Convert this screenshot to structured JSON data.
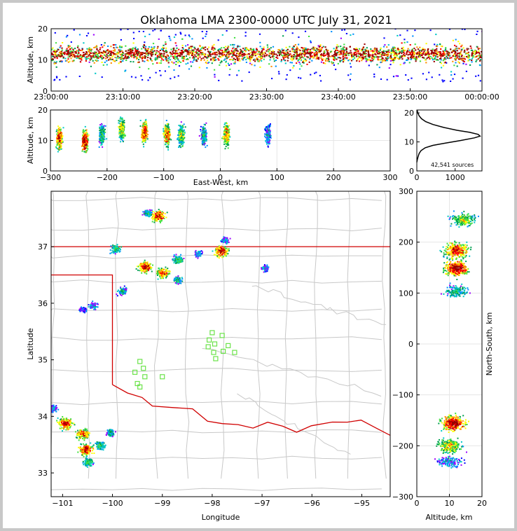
{
  "chart_data": [
    {
      "type": "heatmap",
      "panel": "altitude-time",
      "title": "Oklahoma LMA 2300-0000 UTC July 31, 2021",
      "ylabel": "Altitude, km",
      "ylim": [
        0,
        20
      ],
      "yticks": [
        "0",
        "10",
        "20"
      ],
      "xlim": [
        0,
        60
      ],
      "xticks": [
        "23:00:00",
        "23:10:00",
        "23:20:00",
        "23:30:00",
        "23:40:00",
        "23:50:00",
        "00:00:00"
      ],
      "density_band_km": [
        7,
        16
      ]
    },
    {
      "type": "heatmap",
      "panel": "altitude-east-west",
      "xlabel": "East-West, km",
      "ylabel": "Altitude, km",
      "xlim": [
        -300,
        300
      ],
      "ylim": [
        0,
        20
      ],
      "xticks": [
        "−300",
        "−200",
        "−100",
        "0",
        "100",
        "200",
        "300"
      ],
      "yticks": [
        "0",
        "10",
        "20"
      ],
      "cells": [
        {
          "x": -285,
          "alt": 11,
          "i": 0.9
        },
        {
          "x": -240,
          "alt": 10,
          "i": 1.0
        },
        {
          "x": -210,
          "alt": 12,
          "i": 0.5
        },
        {
          "x": -175,
          "alt": 14,
          "i": 0.7
        },
        {
          "x": -135,
          "alt": 13,
          "i": 0.9
        },
        {
          "x": -95,
          "alt": 12,
          "i": 0.85
        },
        {
          "x": -70,
          "alt": 12,
          "i": 0.6
        },
        {
          "x": -30,
          "alt": 12,
          "i": 0.4
        },
        {
          "x": 10,
          "alt": 12,
          "i": 0.8
        },
        {
          "x": 83,
          "alt": 12,
          "i": 0.3
        }
      ]
    },
    {
      "type": "line",
      "panel": "altitude-histogram",
      "xticks": [
        "0",
        "1000"
      ],
      "yticks": [
        "0",
        "10",
        "20"
      ],
      "xlim": [
        0,
        1700
      ],
      "ylim": [
        0,
        21
      ],
      "annotation": "42,541 sources",
      "x": [
        0,
        15,
        35,
        60,
        110,
        220,
        420,
        750,
        1150,
        1500,
        1650,
        1600,
        1380,
        1050,
        700,
        420,
        230,
        120,
        60,
        25,
        5
      ],
      "y": [
        3,
        4,
        5,
        6,
        7,
        8,
        8.8,
        9.6,
        10.5,
        11.4,
        12,
        12.6,
        13.3,
        14,
        15,
        16,
        17,
        18,
        19,
        20,
        21
      ]
    },
    {
      "type": "scatter",
      "panel": "plan-view-map",
      "xlabel": "Longitude",
      "ylabel": "Latitude",
      "xlim": [
        -101.23,
        -94.43
      ],
      "ylim": [
        32.58,
        37.98
      ],
      "xticks": [
        "−101",
        "−100",
        "−99",
        "−98",
        "−97",
        "−96",
        "−95"
      ],
      "yticks": [
        "33",
        "34",
        "35",
        "36",
        "37"
      ],
      "storm_cells": [
        {
          "lon": -99.1,
          "lat": 37.55,
          "i": 0.9
        },
        {
          "lon": -99.3,
          "lat": 37.6,
          "i": 0.4
        },
        {
          "lon": -99.95,
          "lat": 36.98,
          "i": 0.5
        },
        {
          "lon": -99.35,
          "lat": 36.65,
          "i": 0.9
        },
        {
          "lon": -99.0,
          "lat": 36.55,
          "i": 0.8
        },
        {
          "lon": -98.7,
          "lat": 36.42,
          "i": 0.4
        },
        {
          "lon": -98.7,
          "lat": 36.78,
          "i": 0.5
        },
        {
          "lon": -98.3,
          "lat": 36.88,
          "i": 0.3
        },
        {
          "lon": -97.83,
          "lat": 36.93,
          "i": 0.9
        },
        {
          "lon": -97.75,
          "lat": 37.12,
          "i": 0.3
        },
        {
          "lon": -96.95,
          "lat": 36.63,
          "i": 0.3
        },
        {
          "lon": -99.8,
          "lat": 36.22,
          "i": 0.4
        },
        {
          "lon": -100.4,
          "lat": 35.97,
          "i": 0.3
        },
        {
          "lon": -100.6,
          "lat": 35.9,
          "i": 0.2
        },
        {
          "lon": -100.95,
          "lat": 33.88,
          "i": 0.9
        },
        {
          "lon": -100.6,
          "lat": 33.7,
          "i": 0.8
        },
        {
          "lon": -100.55,
          "lat": 33.42,
          "i": 0.9
        },
        {
          "lon": -100.5,
          "lat": 33.2,
          "i": 0.5
        },
        {
          "lon": -100.25,
          "lat": 33.5,
          "i": 0.5
        },
        {
          "lon": -100.05,
          "lat": 33.72,
          "i": 0.4
        },
        {
          "lon": -101.2,
          "lat": 34.15,
          "i": 0.3
        }
      ],
      "stations": [
        [
          -98.0,
          35.48
        ],
        [
          -97.8,
          35.43
        ],
        [
          -98.06,
          35.35
        ],
        [
          -97.95,
          35.28
        ],
        [
          -98.08,
          35.23
        ],
        [
          -97.68,
          35.25
        ],
        [
          -97.97,
          35.13
        ],
        [
          -97.78,
          35.15
        ],
        [
          -97.55,
          35.13
        ],
        [
          -97.93,
          35.02
        ],
        [
          -99.45,
          34.97
        ],
        [
          -99.38,
          34.85
        ],
        [
          -99.55,
          34.78
        ],
        [
          -99.35,
          34.7
        ],
        [
          -99.0,
          34.7
        ],
        [
          -99.5,
          34.58
        ],
        [
          -99.45,
          34.52
        ]
      ]
    },
    {
      "type": "heatmap",
      "panel": "north-south-altitude",
      "xlabel": "Altitude, km",
      "ylabel": "North-South, km",
      "xlim": [
        0,
        20
      ],
      "ylim": [
        -300,
        300
      ],
      "xticks": [
        "0",
        "10",
        "20"
      ],
      "yticks": [
        "−300",
        "−200",
        "−100",
        "0",
        "100",
        "200",
        "300"
      ],
      "cells": [
        {
          "y": 245,
          "alt": 14,
          "i": 0.6
        },
        {
          "y": 185,
          "alt": 12,
          "i": 0.9
        },
        {
          "y": 150,
          "alt": 12,
          "i": 1.0
        },
        {
          "y": 105,
          "alt": 12,
          "i": 0.4
        },
        {
          "y": -155,
          "alt": 11,
          "i": 1.0
        },
        {
          "y": -200,
          "alt": 10,
          "i": 0.7
        },
        {
          "y": -230,
          "alt": 10,
          "i": 0.3
        }
      ]
    }
  ],
  "colors": {
    "border": "#d00000",
    "county_line": "#c8c8c8",
    "station": "#6be34a",
    "scale": [
      "#0000ff",
      "#9b00ff",
      "#0090ff",
      "#00c8c8",
      "#00a050",
      "#40e040",
      "#ffff00",
      "#ff9000",
      "#ff0000",
      "#990000"
    ]
  }
}
